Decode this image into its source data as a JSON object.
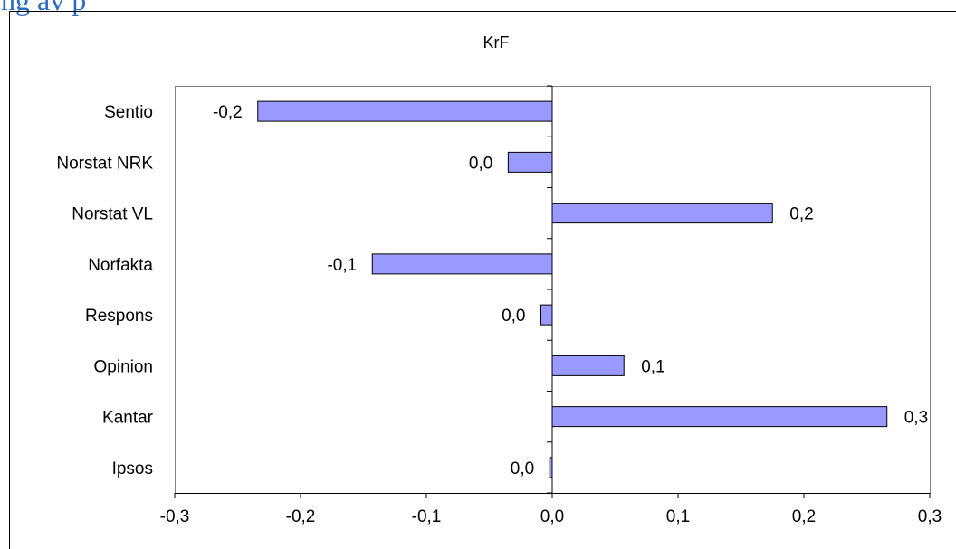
{
  "page_heading": "ng av p",
  "chart_data": {
    "type": "bar",
    "orientation": "horizontal",
    "title": "KrF",
    "categories": [
      "Sentio",
      "Norstat NRK",
      "Norstat VL",
      "Norfakta",
      "Respons",
      "Opinion",
      "Kantar",
      "Ipsos"
    ],
    "values": [
      -0.234,
      -0.035,
      0.175,
      -0.143,
      -0.009,
      0.057,
      0.266,
      -0.002
    ],
    "labels": [
      "-0,2",
      "0,0",
      "0,2",
      "-0,1",
      "0,0",
      "0,1",
      "0,3",
      "0,0"
    ],
    "xlim": [
      -0.3,
      0.3
    ],
    "xticks": [
      -0.3,
      -0.2,
      -0.1,
      0.0,
      0.1,
      0.2,
      0.3
    ],
    "xtick_labels": [
      "-0,3",
      "-0,2",
      "-0,1",
      "0,0",
      "0,1",
      "0,2",
      "0,3"
    ],
    "xlabel": "",
    "ylabel": "",
    "grid": false,
    "legend": "none",
    "colors": {
      "bar_fill": "#9999FF",
      "bar_stroke": "#000000",
      "plot_border": "#808080",
      "axis": "#000000"
    }
  }
}
